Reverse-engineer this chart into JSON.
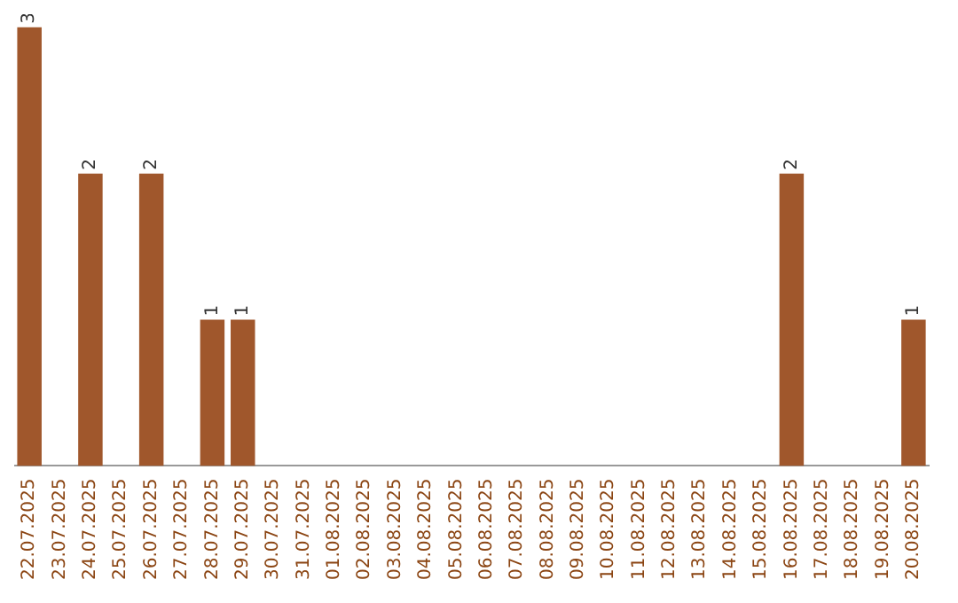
{
  "chart_data": {
    "type": "bar",
    "categories": [
      "22.07.2025",
      "23.07.2025",
      "24.07.2025",
      "25.07.2025",
      "26.07.2025",
      "27.07.2025",
      "28.07.2025",
      "29.07.2025",
      "30.07.2025",
      "31.07.2025",
      "01.08.2025",
      "02.08.2025",
      "03.08.2025",
      "04.08.2025",
      "05.08.2025",
      "06.08.2025",
      "07.08.2025",
      "08.08.2025",
      "09.08.2025",
      "10.08.2025",
      "11.08.2025",
      "12.08.2025",
      "13.08.2025",
      "14.08.2025",
      "15.08.2025",
      "16.08.2025",
      "17.08.2025",
      "18.08.2025",
      "19.08.2025",
      "20.08.2025"
    ],
    "values": [
      3,
      0,
      2,
      0,
      2,
      0,
      1,
      1,
      0,
      0,
      0,
      0,
      0,
      0,
      0,
      0,
      0,
      0,
      0,
      0,
      0,
      0,
      0,
      0,
      0,
      2,
      0,
      0,
      0,
      1
    ],
    "value_labels": [
      "3",
      null,
      "2",
      null,
      "2",
      null,
      "1",
      "1",
      null,
      null,
      null,
      null,
      null,
      null,
      null,
      null,
      null,
      null,
      null,
      null,
      null,
      null,
      null,
      null,
      null,
      "2",
      null,
      null,
      null,
      "1"
    ],
    "color": "#a0572c",
    "grid": false,
    "legend": false
  }
}
